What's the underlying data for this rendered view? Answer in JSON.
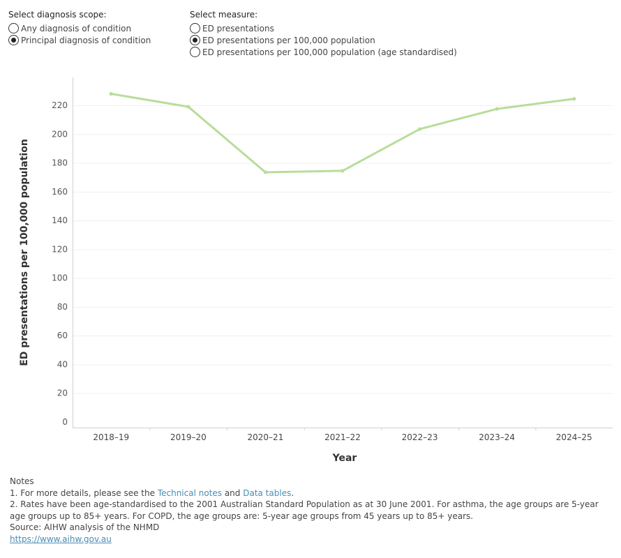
{
  "controls": {
    "scope": {
      "title": "Select diagnosis scope:",
      "options": [
        {
          "label": "Any diagnosis of condition",
          "selected": false
        },
        {
          "label": "Principal diagnosis of condition",
          "selected": true
        }
      ]
    },
    "measure": {
      "title": "Select measure:",
      "options": [
        {
          "label": "ED presentations",
          "selected": false
        },
        {
          "label": "ED presentations per 100,000 population",
          "selected": true
        },
        {
          "label": "ED presentations per 100,000 population (age standardised)",
          "selected": false
        }
      ]
    }
  },
  "chart_data": {
    "type": "line",
    "categories": [
      "2018–19",
      "2019–20",
      "2020–21",
      "2021–22",
      "2022–23",
      "2023–24",
      "2024–25"
    ],
    "series": [
      {
        "values": [
          228,
          219,
          173.5,
          174.5,
          203.5,
          217.5,
          224.5
        ],
        "color": "#b8dd9a"
      }
    ],
    "xlabel": "Year",
    "ylabel": "ED presentations per 100,000 population",
    "ylim": [
      0,
      240
    ],
    "yticks": [
      0,
      20,
      40,
      60,
      80,
      100,
      120,
      140,
      160,
      180,
      200,
      220
    ],
    "grid": true
  },
  "notes": {
    "heading": "Notes",
    "line1_prefix": "1. For more details, please see the ",
    "technical_notes": "Technical notes",
    "and": " and ",
    "data_tables": "Data tables",
    "line1_suffix": ".",
    "line2": "2. Rates have been age-standardised to the 2001 Australian Standard Population as at 30 June 2001. For asthma, the age groups are 5-year age groups up to 85+ years.  For COPD, the age groups are: 5-year age groups from 45 years up to 85+ years.",
    "source": "Source: AIHW analysis of the NHMD",
    "url": "https://www.aihw.gov.au"
  }
}
